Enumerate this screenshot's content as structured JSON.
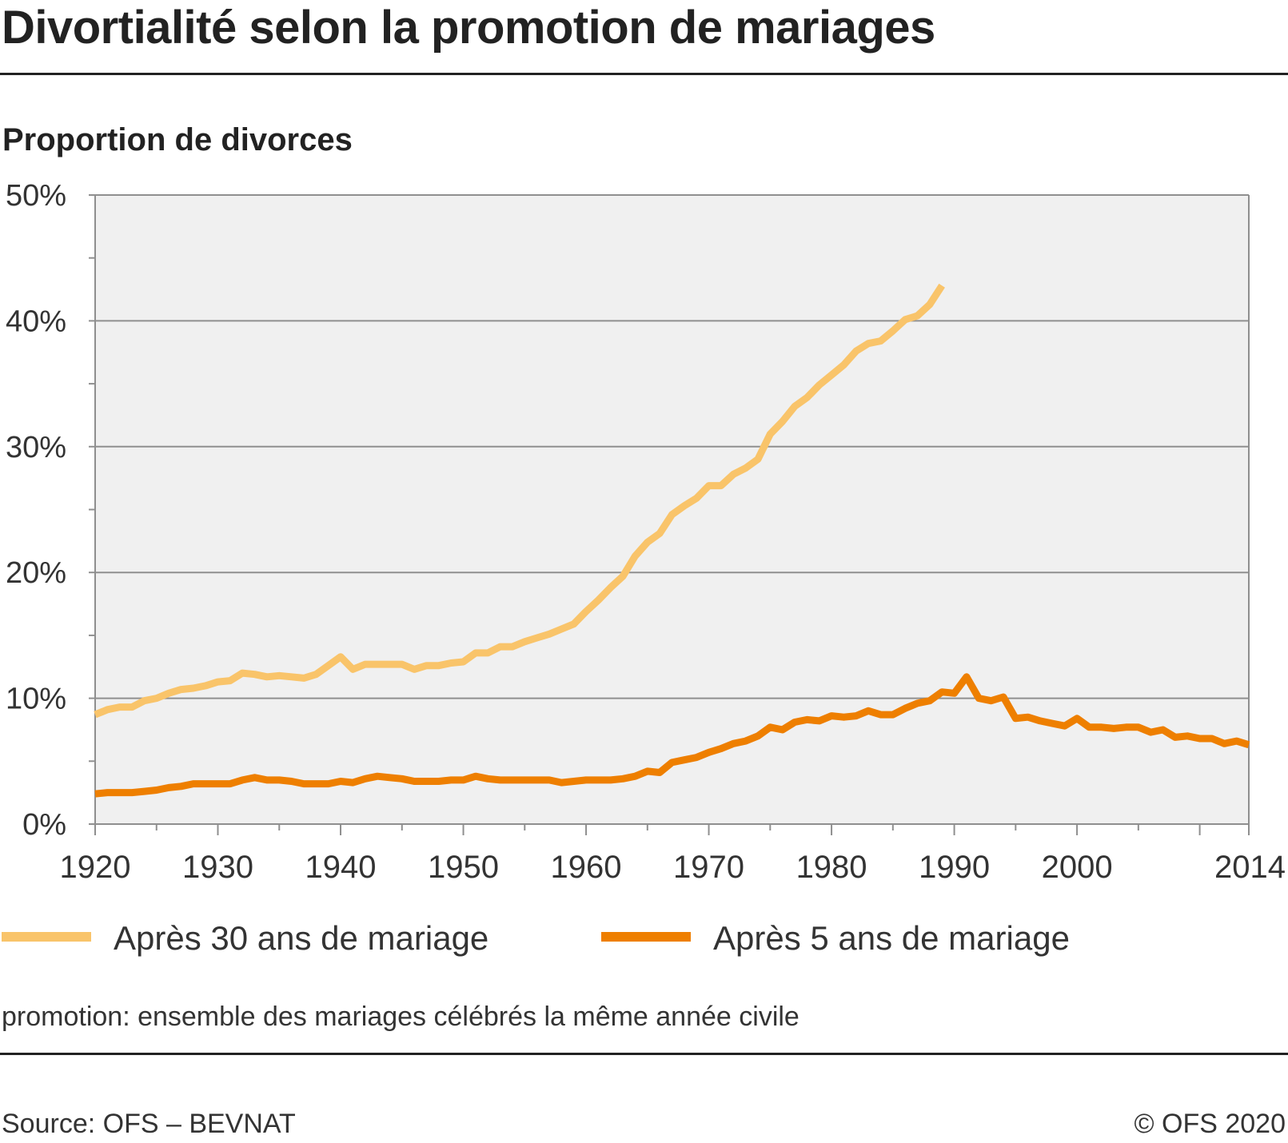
{
  "title": "Divortialité selon la promotion de mariages",
  "subtitle": "Proportion de divorces",
  "note": "promotion: ensemble des mariages célébrés la même année civile",
  "source": "Source: OFS – BEVNAT",
  "copyright": "© OFS 2020",
  "colors": {
    "series_30": "#F9C46A",
    "series_5": "#EE7F00",
    "grid": "#8f8f8f",
    "plot_bg": "#F0F0F0"
  },
  "chart_data": {
    "type": "line",
    "title": "Divortialité selon la promotion de mariages",
    "ylabel": "Proportion de divorces",
    "xlabel": "",
    "xlim": [
      1920,
      2014
    ],
    "ylim": [
      0,
      50
    ],
    "x_ticks": [
      "1920",
      "1930",
      "1940",
      "1950",
      "1960",
      "1970",
      "1980",
      "1990",
      "2000",
      "2014"
    ],
    "y_ticks": [
      "0%",
      "10%",
      "20%",
      "30%",
      "40%",
      "50%"
    ],
    "grid": true,
    "legend_position": "bottom",
    "series": [
      {
        "name": "Après 30 ans de mariage",
        "x": [
          1920,
          1921,
          1922,
          1923,
          1924,
          1925,
          1926,
          1927,
          1928,
          1929,
          1930,
          1931,
          1932,
          1933,
          1934,
          1935,
          1936,
          1937,
          1938,
          1939,
          1940,
          1941,
          1942,
          1943,
          1944,
          1945,
          1946,
          1947,
          1948,
          1949,
          1950,
          1951,
          1952,
          1953,
          1954,
          1955,
          1956,
          1957,
          1958,
          1959,
          1960,
          1961,
          1962,
          1963,
          1964,
          1965,
          1966,
          1967,
          1968,
          1969,
          1970,
          1971,
          1972,
          1973,
          1974,
          1975,
          1976,
          1977,
          1978,
          1979,
          1980,
          1981,
          1982,
          1983,
          1984,
          1985,
          1986,
          1987,
          1988,
          1989
        ],
        "values": [
          8.7,
          9.1,
          9.3,
          9.3,
          9.8,
          10.0,
          10.4,
          10.7,
          10.8,
          11.0,
          11.3,
          11.4,
          12.0,
          11.9,
          11.7,
          11.8,
          11.7,
          11.6,
          11.9,
          12.6,
          13.3,
          12.3,
          12.7,
          12.7,
          12.7,
          12.7,
          12.3,
          12.6,
          12.6,
          12.8,
          12.9,
          13.6,
          13.6,
          14.1,
          14.1,
          14.5,
          14.8,
          15.1,
          15.5,
          15.9,
          16.9,
          17.8,
          18.8,
          19.7,
          21.3,
          22.4,
          23.1,
          24.6,
          25.3,
          25.9,
          26.9,
          26.9,
          27.8,
          28.3,
          29.0,
          31.0,
          32.0,
          33.2,
          33.9,
          34.9,
          35.7,
          36.5,
          37.6,
          38.2,
          38.4,
          39.2,
          40.1,
          40.4,
          41.3,
          42.8
        ]
      },
      {
        "name": "Après 5 ans de mariage",
        "x": [
          1920,
          1921,
          1922,
          1923,
          1924,
          1925,
          1926,
          1927,
          1928,
          1929,
          1930,
          1931,
          1932,
          1933,
          1934,
          1935,
          1936,
          1937,
          1938,
          1939,
          1940,
          1941,
          1942,
          1943,
          1944,
          1945,
          1946,
          1947,
          1948,
          1949,
          1950,
          1951,
          1952,
          1953,
          1954,
          1955,
          1956,
          1957,
          1958,
          1959,
          1960,
          1961,
          1962,
          1963,
          1964,
          1965,
          1966,
          1967,
          1968,
          1969,
          1970,
          1971,
          1972,
          1973,
          1974,
          1975,
          1976,
          1977,
          1978,
          1979,
          1980,
          1981,
          1982,
          1983,
          1984,
          1985,
          1986,
          1987,
          1988,
          1989,
          1990,
          1991,
          1992,
          1993,
          1994,
          1995,
          1996,
          1997,
          1998,
          1999,
          2000,
          2001,
          2002,
          2003,
          2004,
          2005,
          2006,
          2007,
          2008,
          2009,
          2010,
          2011,
          2012,
          2013,
          2014
        ],
        "values": [
          2.4,
          2.5,
          2.5,
          2.5,
          2.6,
          2.7,
          2.9,
          3.0,
          3.2,
          3.2,
          3.2,
          3.2,
          3.5,
          3.7,
          3.5,
          3.5,
          3.4,
          3.2,
          3.2,
          3.2,
          3.4,
          3.3,
          3.6,
          3.8,
          3.7,
          3.6,
          3.4,
          3.4,
          3.4,
          3.5,
          3.5,
          3.8,
          3.6,
          3.5,
          3.5,
          3.5,
          3.5,
          3.5,
          3.3,
          3.4,
          3.5,
          3.5,
          3.5,
          3.6,
          3.8,
          4.2,
          4.1,
          4.9,
          5.1,
          5.3,
          5.7,
          6.0,
          6.4,
          6.6,
          7.0,
          7.7,
          7.5,
          8.1,
          8.3,
          8.2,
          8.6,
          8.5,
          8.6,
          9.0,
          8.7,
          8.7,
          9.2,
          9.6,
          9.8,
          10.5,
          10.4,
          11.7,
          10.0,
          9.8,
          10.1,
          8.4,
          8.5,
          8.2,
          8.0,
          7.8,
          8.4,
          7.7,
          7.7,
          7.6,
          7.7,
          7.7,
          7.3,
          7.5,
          6.9,
          7.0,
          6.8,
          6.8,
          6.4,
          6.6,
          6.3
        ]
      }
    ]
  }
}
